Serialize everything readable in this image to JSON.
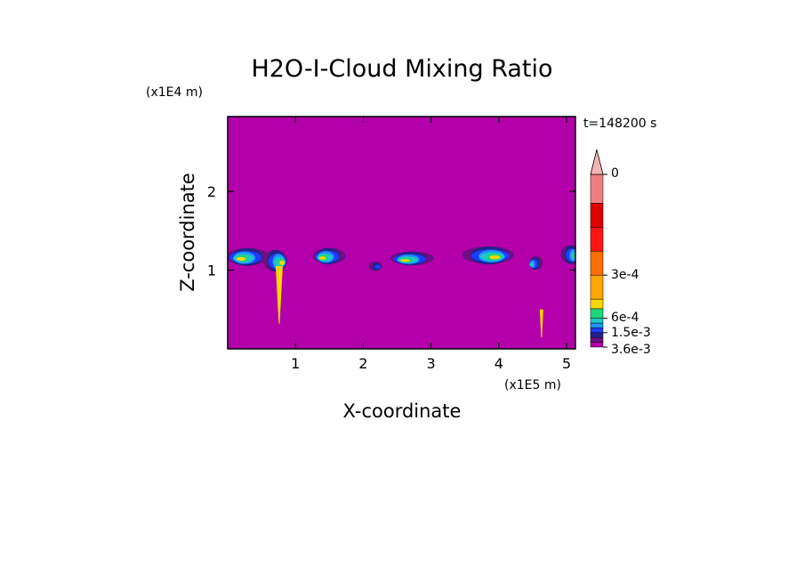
{
  "chart_data": {
    "type": "heatmap",
    "title": "H2O-I-Cloud Mixing Ratio",
    "xlabel": "X-coordinate",
    "ylabel": "Z-coordinate",
    "x_unit": "(x1E5 m)",
    "y_unit": "(x1E4 m)",
    "time_label": "t=148200 s",
    "xlim": [
      0,
      5.13
    ],
    "ylim": [
      0,
      2.95
    ],
    "x_ticks": [
      1,
      2,
      3,
      4,
      5
    ],
    "x_tick_labels": [
      "1",
      "2",
      "3",
      "4",
      "5"
    ],
    "y_ticks": [
      1,
      2
    ],
    "y_tick_labels": [
      "1",
      "2"
    ],
    "background_color": "#b400aa",
    "colorbar": {
      "levels": [
        0,
        0.0001,
        0.0002,
        0.0003,
        0.0004,
        0.0005,
        0.0006,
        0.0008,
        0.001,
        0.0015,
        0.002,
        0.0025,
        0.003,
        0.0036
      ],
      "colors": [
        "#b400aa",
        "#6a0f86",
        "#222288",
        "#1e3cff",
        "#1e96ff",
        "#1ec8c8",
        "#1ed77a",
        "#ffd700",
        "#ffa500",
        "#ff6e00",
        "#ff1414",
        "#dd0000",
        "#f08080"
      ],
      "extend_color": "#f4b4b4",
      "labeled_values": [
        0,
        0.0003,
        0.0006,
        0.0015,
        0.0036
      ],
      "labels": [
        "0",
        "3e-4",
        "6e-4",
        "1.5e-3",
        "3.6e-3"
      ]
    },
    "cloud_cells": [
      {
        "x": 0.3,
        "z": 1.17,
        "dx": 0.32,
        "dz": 0.13,
        "peak": 0.0008
      },
      {
        "x": 0.7,
        "z": 1.12,
        "dx": 0.18,
        "dz": 0.16,
        "peak": 0.0008
      },
      {
        "x": 1.5,
        "z": 1.18,
        "dx": 0.24,
        "dz": 0.12,
        "peak": 0.0008
      },
      {
        "x": 2.18,
        "z": 1.05,
        "dx": 0.1,
        "dz": 0.07,
        "peak": 0.0003
      },
      {
        "x": 2.72,
        "z": 1.15,
        "dx": 0.32,
        "dz": 0.1,
        "peak": 0.0008
      },
      {
        "x": 3.84,
        "z": 1.19,
        "dx": 0.38,
        "dz": 0.13,
        "peak": 0.0008
      },
      {
        "x": 4.55,
        "z": 1.09,
        "dx": 0.1,
        "dz": 0.1,
        "peak": 0.0005
      },
      {
        "x": 5.05,
        "z": 1.2,
        "dx": 0.14,
        "dz": 0.14,
        "peak": 0.0006
      }
    ]
  }
}
